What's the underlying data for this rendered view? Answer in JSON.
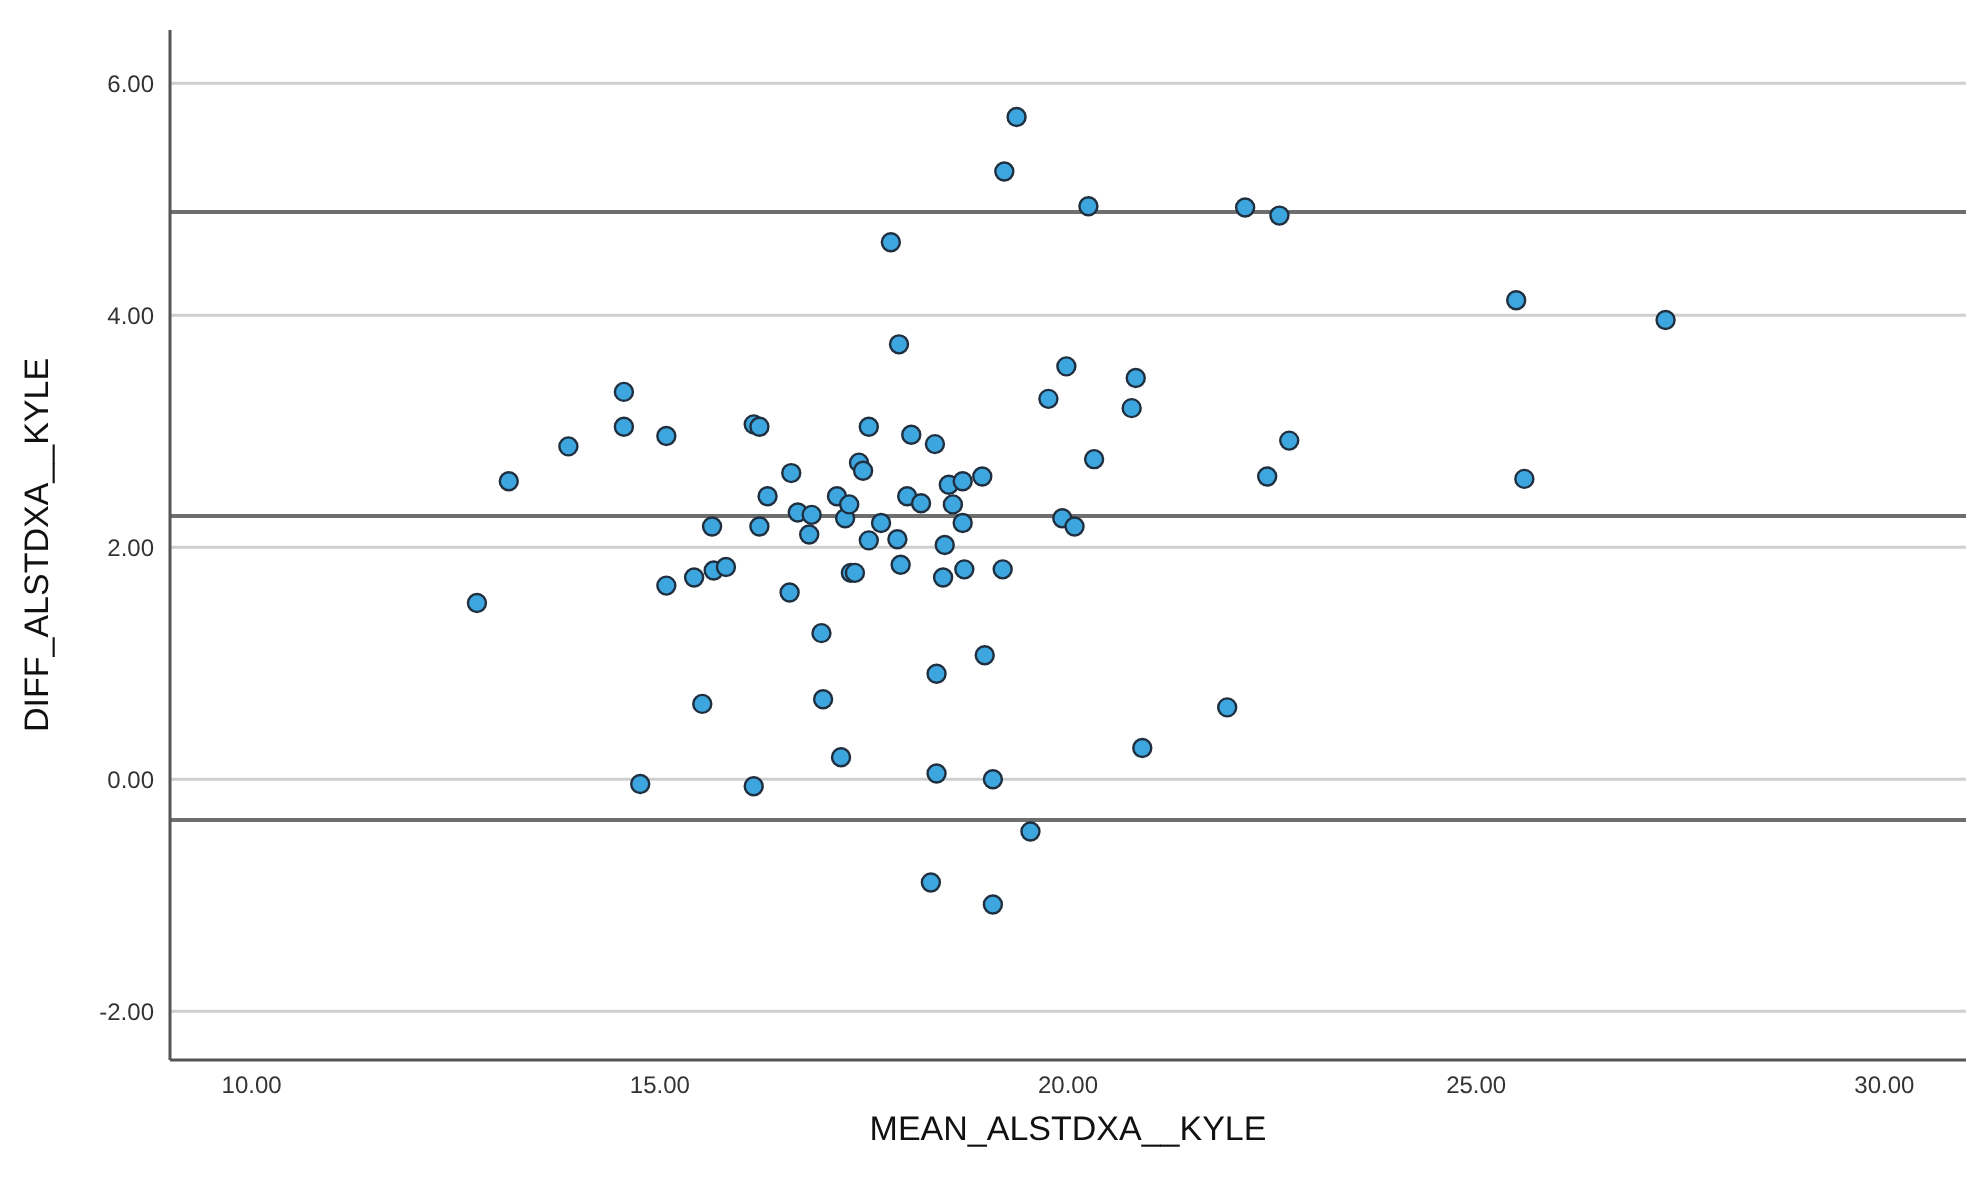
{
  "chart_data": {
    "type": "scatter",
    "xlabel": "MEAN_ALSTDXA__KYLE",
    "ylabel": "DIFF_ALSTDXA__KYLE",
    "x": [
      12.76,
      13.15,
      13.88,
      14.56,
      14.56,
      15.08,
      14.76,
      15.08,
      15.42,
      15.52,
      15.64,
      15.66,
      15.81,
      16.15,
      16.22,
      16.22,
      16.32,
      16.15,
      16.61,
      16.69,
      16.59,
      16.86,
      16.83,
      16.98,
      17.0,
      17.17,
      17.22,
      17.27,
      17.32,
      17.34,
      17.39,
      17.44,
      17.49,
      17.56,
      17.56,
      17.71,
      17.83,
      17.93,
      17.95,
      17.91,
      18.03,
      18.08,
      18.2,
      18.32,
      18.37,
      18.39,
      18.39,
      18.47,
      18.49,
      18.54,
      18.59,
      18.71,
      18.71,
      18.73,
      18.95,
      18.98,
      19.08,
      19.08,
      19.2,
      19.22,
      19.37,
      19.54,
      19.76,
      19.93,
      19.98,
      20.08,
      20.25,
      20.32,
      20.78,
      20.83,
      20.91,
      21.95,
      22.17,
      22.44,
      22.59,
      22.71,
      25.49,
      25.59,
      27.32
    ],
    "series": [
      {
        "color": "#3ea6de",
        "values": [
          1.52,
          2.57,
          2.87,
          3.34,
          3.04,
          2.96,
          -0.04,
          1.67,
          1.74,
          0.65,
          2.18,
          1.8,
          1.83,
          3.06,
          3.04,
          2.18,
          2.44,
          -0.06,
          2.64,
          2.3,
          1.61,
          2.28,
          2.11,
          1.26,
          0.69,
          2.44,
          0.19,
          2.25,
          2.37,
          1.78,
          1.78,
          2.73,
          2.66,
          3.04,
          2.06,
          2.21,
          4.63,
          3.75,
          1.85,
          2.07,
          2.44,
          2.97,
          2.38,
          -0.89,
          2.89,
          0.91,
          0.05,
          1.74,
          2.02,
          2.54,
          2.37,
          2.57,
          2.21,
          1.81,
          2.61,
          1.07,
          0.0,
          -1.08,
          1.81,
          5.24,
          5.71,
          -0.45,
          3.28,
          2.25,
          3.56,
          2.18,
          4.94,
          2.76,
          3.2,
          3.46,
          0.27,
          0.62,
          4.93,
          2.61,
          4.86,
          2.92,
          4.13,
          2.59,
          3.96
        ]
      }
    ],
    "xlim": [
      9,
      31
    ],
    "xticks": [
      {
        "value": 10,
        "label": "10.00"
      },
      {
        "value": 15,
        "label": "15.00"
      },
      {
        "value": 20,
        "label": "20.00"
      },
      {
        "value": 25,
        "label": "25.00"
      },
      {
        "value": 30,
        "label": "30.00"
      }
    ],
    "ylim": [
      -2.42,
      6.46
    ],
    "yticks": [
      {
        "value": -2,
        "label": "-2.00"
      },
      {
        "value": 0,
        "label": "0.00"
      },
      {
        "value": 2,
        "label": "2.00"
      },
      {
        "value": 4,
        "label": "4.00"
      },
      {
        "value": 6,
        "label": "6.00"
      }
    ],
    "grid": "y",
    "marker": "circle",
    "ref_lines": [
      {
        "axis": "y",
        "value": 4.89,
        "color": "#6e6e6e"
      },
      {
        "axis": "y",
        "value": 2.27,
        "color": "#6e6e6e"
      },
      {
        "axis": "y",
        "value": -0.35,
        "color": "#6e6e6e"
      }
    ]
  }
}
